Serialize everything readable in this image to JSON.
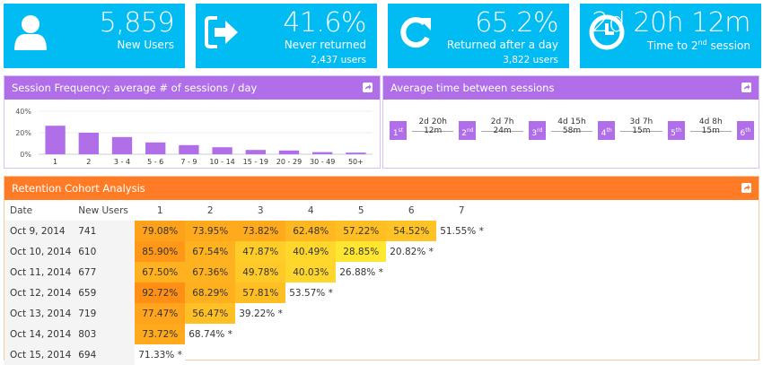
{
  "kpis": [
    {
      "icon": "user-icon",
      "value": "5,859",
      "label": "New Users",
      "sub": ""
    },
    {
      "icon": "sign-out-icon",
      "value": "41.6%",
      "label": "Never returned",
      "sub": "2,437 users"
    },
    {
      "icon": "refresh-icon",
      "value": "65.2%",
      "label": "Returned after a day",
      "sub": "3,822 users"
    },
    {
      "icon": "clock-icon",
      "value": "2d 20h 12m",
      "label_prefix": "Time to 2",
      "label_sup": "nd",
      "label_suffix": " session",
      "sub": ""
    }
  ],
  "session_frequency": {
    "title": "Session Frequency: average # of sessions / day"
  },
  "chart_data": {
    "type": "bar",
    "title": "Session Frequency: average # of sessions / day",
    "categories": [
      "1",
      "2",
      "3 - 4",
      "5 - 6",
      "7 - 9",
      "10 - 14",
      "15 - 19",
      "20 - 29",
      "30 - 49",
      "50+"
    ],
    "values": [
      26.5,
      20,
      16,
      11,
      8.5,
      6.5,
      4,
      3.5,
      2,
      1.5
    ],
    "ylim": [
      0,
      40
    ],
    "yticks": [
      "0%",
      "20%",
      "40%"
    ],
    "ytick_values": [
      0,
      20,
      40
    ],
    "xlabel": "",
    "ylabel": "",
    "grid": true,
    "color": "#b06fe8"
  },
  "avg_time": {
    "title": "Average time between sessions",
    "steps": [
      {
        "n": "1",
        "sup": "st"
      },
      {
        "n": "2",
        "sup": "nd"
      },
      {
        "n": "3",
        "sup": "rd"
      },
      {
        "n": "4",
        "sup": "th"
      },
      {
        "n": "5",
        "sup": "th"
      },
      {
        "n": "6",
        "sup": "th"
      }
    ],
    "gaps": [
      "2d 20h 12m",
      "2d 7h 24m",
      "4d 15h 58m",
      "3d 7h 15m",
      "4d 8h 15m"
    ]
  },
  "cohort": {
    "title": "Retention Cohort Analysis",
    "headers": [
      "Date",
      "New Users",
      "1",
      "2",
      "3",
      "4",
      "5",
      "6",
      "7"
    ],
    "rows": [
      {
        "date": "Oct 9, 2014",
        "new_users": "741",
        "cells": [
          "79.08%",
          "73.95%",
          "73.82%",
          "62.48%",
          "57.22%",
          "54.52%"
        ],
        "partial": "51.55% *"
      },
      {
        "date": "Oct 10, 2014",
        "new_users": "610",
        "cells": [
          "85.90%",
          "67.54%",
          "47.87%",
          "40.49%",
          "28.85%"
        ],
        "partial": "20.82% *"
      },
      {
        "date": "Oct 11, 2014",
        "new_users": "677",
        "cells": [
          "67.50%",
          "67.36%",
          "49.78%",
          "40.03%"
        ],
        "partial": "26.88% *"
      },
      {
        "date": "Oct 12, 2014",
        "new_users": "659",
        "cells": [
          "92.72%",
          "68.29%",
          "57.81%"
        ],
        "partial": "53.57% *"
      },
      {
        "date": "Oct 13, 2014",
        "new_users": "719",
        "cells": [
          "77.47%",
          "56.47%"
        ],
        "partial": "39.22% *"
      },
      {
        "date": "Oct 14, 2014",
        "new_users": "803",
        "cells": [
          "73.72%"
        ],
        "partial": "68.74% *"
      },
      {
        "date": "Oct 15, 2014",
        "new_users": "694",
        "cells": [],
        "partial": "71.33% *"
      }
    ]
  },
  "colors": {
    "kpi_bg": "#00bcf2",
    "purple": "#b06fe8",
    "orange": "#ff7b25"
  }
}
